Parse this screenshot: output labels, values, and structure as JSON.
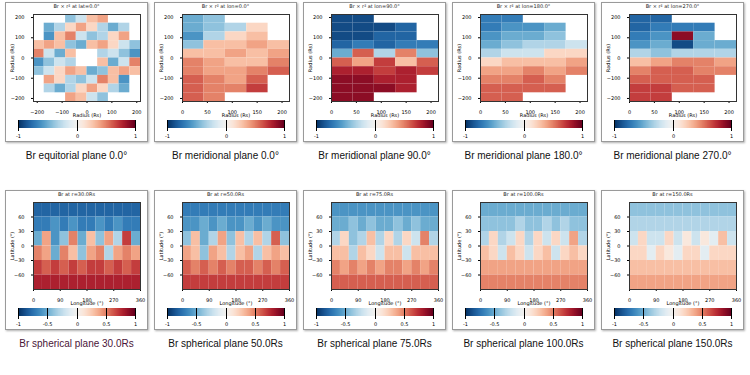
{
  "chart_data": [
    {
      "type": "heatmap",
      "caption": "Br equitorial plane 0.0°",
      "title": "Br × r² at lat=0.0°",
      "xlabel": "Radius (Rs)",
      "ylabel": "Radius (Rs)",
      "xlim": [
        -215,
        215
      ],
      "ylim": [
        -215,
        215
      ],
      "xticks": [
        -200,
        -100,
        0,
        100,
        200
      ],
      "yticks": [
        -200,
        -100,
        0,
        100,
        200
      ],
      "colorbar": {
        "lim": [
          -1,
          1
        ],
        "ticks": [
          -1,
          0,
          1
        ]
      },
      "cells": [
        [
          null,
          null,
          null,
          -0.4,
          -0.2,
          0.3,
          0.4,
          null,
          null,
          null
        ],
        [
          null,
          -0.5,
          -0.3,
          0.2,
          0.4,
          0.2,
          -0.3,
          -0.5,
          -0.3,
          null
        ],
        [
          null,
          -0.6,
          0.3,
          0.5,
          -0.2,
          -0.4,
          -0.3,
          0.2,
          0.4,
          null
        ],
        [
          0.3,
          0.4,
          0.3,
          -0.4,
          -0.5,
          0.3,
          0.4,
          0.2,
          -0.2,
          -0.4
        ],
        [
          0.5,
          -0.2,
          -0.5,
          0.3,
          null,
          null,
          -0.3,
          -0.2,
          -0.4,
          -0.6
        ],
        [
          -0.6,
          -0.4,
          -0.2,
          -0.3,
          null,
          null,
          0.3,
          -0.5,
          -0.2,
          0.5
        ],
        [
          -0.4,
          -0.2,
          0.2,
          0.4,
          0.3,
          -0.5,
          -0.4,
          0.3,
          0.4,
          0.3
        ],
        [
          null,
          0.4,
          0.2,
          -0.3,
          -0.4,
          -0.2,
          0.5,
          0.3,
          -0.6,
          null
        ],
        [
          null,
          -0.3,
          -0.5,
          -0.3,
          0.2,
          0.4,
          0.2,
          -0.3,
          -0.5,
          null
        ],
        [
          null,
          null,
          null,
          0.4,
          0.3,
          -0.2,
          -0.4,
          null,
          null,
          null
        ]
      ]
    },
    {
      "type": "heatmap",
      "caption": "Br meridional plane 0.0°",
      "title": "Br × r² at lon=0.0°",
      "xlabel": "Radius (Rs)",
      "ylabel": "Radius (Rs)",
      "xlim": [
        0,
        215
      ],
      "ylim": [
        -215,
        215
      ],
      "xticks": [
        0,
        50,
        100,
        150,
        200
      ],
      "yticks": [
        -200,
        -100,
        0,
        100,
        200
      ],
      "colorbar": {
        "lim": [
          -1,
          1
        ],
        "ticks": [
          -1,
          0,
          1
        ]
      },
      "cells": [
        [
          -0.5,
          -0.4,
          null,
          null,
          null
        ],
        [
          -0.5,
          -0.4,
          -0.3,
          0.2,
          null
        ],
        [
          -0.6,
          -0.3,
          0.2,
          0.3,
          null
        ],
        [
          -0.4,
          0.3,
          0.3,
          0.4,
          0.3
        ],
        [
          0.3,
          0.3,
          0.4,
          0.3,
          0.4
        ],
        [
          0.5,
          0.4,
          0.3,
          0.3,
          0.5
        ],
        [
          0.5,
          0.4,
          0.4,
          0.5,
          0.6
        ],
        [
          0.6,
          0.5,
          0.4,
          0.6,
          null
        ],
        [
          0.6,
          0.5,
          0.5,
          0.7,
          null
        ],
        [
          0.6,
          0.5,
          null,
          null,
          null
        ]
      ]
    },
    {
      "type": "heatmap",
      "caption": "Br meridional plane 90.0°",
      "title": "Br × r² at lon=90.0°",
      "xlabel": "Radius (Rs)",
      "ylabel": "Radius (Rs)",
      "xlim": [
        0,
        215
      ],
      "ylim": [
        -215,
        215
      ],
      "xticks": [
        0,
        50,
        100,
        150,
        200
      ],
      "yticks": [
        -200,
        -100,
        0,
        100,
        200
      ],
      "colorbar": {
        "lim": [
          -1,
          1
        ],
        "ticks": [
          -1,
          0,
          1
        ]
      },
      "cells": [
        [
          -0.9,
          -0.9,
          null,
          null,
          null
        ],
        [
          -0.9,
          -0.9,
          -0.9,
          -0.8,
          null
        ],
        [
          -0.9,
          -0.9,
          -0.8,
          -0.8,
          null
        ],
        [
          -0.8,
          -0.7,
          -0.8,
          -0.7,
          -0.7
        ],
        [
          -0.5,
          0.6,
          -0.3,
          0.5,
          -0.4
        ],
        [
          0.6,
          0.4,
          0.7,
          0.3,
          0.6
        ],
        [
          0.8,
          0.8,
          0.7,
          0.8,
          0.7
        ],
        [
          0.9,
          0.9,
          0.8,
          0.8,
          null
        ],
        [
          0.9,
          0.9,
          0.9,
          0.8,
          null
        ],
        [
          0.9,
          0.9,
          null,
          null,
          null
        ]
      ]
    },
    {
      "type": "heatmap",
      "caption": "Br meridional plane 180.0°",
      "title": "Br × r² at lon=180.0°",
      "xlabel": "Radius (Rs)",
      "ylabel": "Radius (Rs)",
      "xlim": [
        0,
        215
      ],
      "ylim": [
        -215,
        215
      ],
      "xticks": [
        0,
        50,
        100,
        150,
        200
      ],
      "yticks": [
        -200,
        -100,
        0,
        100,
        200
      ],
      "colorbar": {
        "lim": [
          -1,
          1
        ],
        "ticks": [
          -1,
          0,
          1
        ]
      },
      "cells": [
        [
          -0.7,
          -0.7,
          null,
          null,
          null
        ],
        [
          -0.7,
          -0.6,
          -0.6,
          -0.5,
          null
        ],
        [
          -0.6,
          -0.5,
          -0.5,
          -0.4,
          null
        ],
        [
          -0.5,
          -0.4,
          -0.3,
          -0.3,
          -0.2
        ],
        [
          -0.3,
          -0.2,
          -0.2,
          0.2,
          0.2
        ],
        [
          0.2,
          0.3,
          0.3,
          0.3,
          0.4
        ],
        [
          0.4,
          0.4,
          0.5,
          0.4,
          0.5
        ],
        [
          0.5,
          0.5,
          0.6,
          0.5,
          null
        ],
        [
          0.6,
          0.6,
          0.6,
          0.6,
          null
        ],
        [
          0.6,
          0.6,
          null,
          null,
          null
        ]
      ]
    },
    {
      "type": "heatmap",
      "caption": "Br meridional plane 270.0°",
      "title": "Br × r² at lon=270.0°",
      "xlabel": "Radius (Rs)",
      "ylabel": "Radius (Rs)",
      "xlim": [
        0,
        215
      ],
      "ylim": [
        -215,
        215
      ],
      "xticks": [
        0,
        50,
        100,
        150,
        200
      ],
      "yticks": [
        -200,
        -100,
        0,
        100,
        200
      ],
      "colorbar": {
        "lim": [
          -1,
          1
        ],
        "ticks": [
          -1,
          0,
          1
        ]
      },
      "cells": [
        [
          -0.8,
          -0.8,
          null,
          null,
          null
        ],
        [
          -0.8,
          -0.7,
          -0.7,
          -0.7,
          null
        ],
        [
          -0.7,
          -0.6,
          0.9,
          -0.5,
          null
        ],
        [
          -0.6,
          -0.5,
          -0.9,
          -0.5,
          -0.5
        ],
        [
          -0.3,
          -0.4,
          -0.3,
          -0.3,
          -0.3
        ],
        [
          0.3,
          0.4,
          0.5,
          0.5,
          0.4
        ],
        [
          0.5,
          0.6,
          0.6,
          0.5,
          0.5
        ],
        [
          0.6,
          0.6,
          0.6,
          0.6,
          null
        ],
        [
          0.7,
          0.7,
          0.6,
          0.6,
          null
        ],
        [
          0.7,
          0.7,
          null,
          null,
          null
        ]
      ]
    },
    {
      "type": "heatmap",
      "caption": "Br spherical plane 30.0Rs",
      "title": "Br at r=30.0Rs",
      "xlabel": "Longitude (°)",
      "ylabel": "Latitude (°)",
      "xlim": [
        0,
        360
      ],
      "ylim": [
        -90,
        90
      ],
      "xticks": [
        0,
        90,
        180,
        270,
        360
      ],
      "yticks": [
        -60,
        -30,
        0,
        30,
        60
      ],
      "colorbar": {
        "lim": [
          -1,
          1
        ],
        "ticks": [
          -1,
          -0.5,
          0,
          0.5,
          1
        ]
      },
      "cells": [
        [
          -0.8,
          -0.8,
          -0.8,
          -0.8,
          -0.8,
          -0.8,
          -0.8,
          -0.8,
          -0.8,
          -0.8,
          -0.8,
          -0.8
        ],
        [
          -0.7,
          -0.7,
          -0.6,
          -0.7,
          -0.6,
          -0.7,
          -0.7,
          -0.6,
          -0.7,
          -0.6,
          -0.7,
          -0.7
        ],
        [
          -0.5,
          0.4,
          -0.6,
          -0.4,
          0.5,
          -0.5,
          0.3,
          -0.4,
          0.4,
          -0.3,
          0.7,
          -0.5
        ],
        [
          0.5,
          0.4,
          -0.5,
          0.5,
          0.3,
          -0.4,
          0.4,
          0.5,
          -0.3,
          0.4,
          0.5,
          0.4
        ],
        [
          0.7,
          0.6,
          0.7,
          0.6,
          0.7,
          0.6,
          0.7,
          0.7,
          0.6,
          0.7,
          0.6,
          0.7
        ],
        [
          0.8,
          0.8,
          0.8,
          0.8,
          0.8,
          0.8,
          0.8,
          0.8,
          0.8,
          0.8,
          0.8,
          0.8
        ]
      ]
    },
    {
      "type": "heatmap",
      "caption": "Br spherical plane 50.0Rs",
      "title": "Br at r=50.0Rs",
      "xlabel": "Longitude (°)",
      "ylabel": "Latitude (°)",
      "xlim": [
        0,
        360
      ],
      "ylim": [
        -90,
        90
      ],
      "xticks": [
        0,
        90,
        180,
        270,
        360
      ],
      "yticks": [
        -60,
        -30,
        0,
        30,
        60
      ],
      "colorbar": {
        "lim": [
          -1,
          1
        ],
        "ticks": [
          -1,
          -0.5,
          0,
          0.5,
          1
        ]
      },
      "cells": [
        [
          -0.7,
          -0.7,
          -0.7,
          -0.7,
          -0.7,
          -0.7,
          -0.7,
          -0.7,
          -0.7,
          -0.7,
          -0.7,
          -0.7
        ],
        [
          -0.6,
          -0.6,
          -0.5,
          -0.6,
          -0.5,
          -0.6,
          -0.6,
          -0.5,
          -0.6,
          -0.5,
          -0.6,
          -0.6
        ],
        [
          -0.4,
          0.3,
          -0.5,
          -0.3,
          0.4,
          -0.4,
          0.3,
          -0.3,
          0.3,
          -0.3,
          0.6,
          -0.4
        ],
        [
          0.4,
          0.3,
          -0.4,
          0.4,
          0.3,
          -0.3,
          0.3,
          0.4,
          -0.3,
          0.3,
          0.4,
          0.3
        ],
        [
          0.6,
          0.5,
          0.6,
          0.5,
          0.6,
          0.5,
          0.6,
          0.6,
          0.5,
          0.6,
          0.5,
          0.6
        ],
        [
          0.7,
          0.7,
          0.7,
          0.7,
          0.7,
          0.7,
          0.7,
          0.7,
          0.7,
          0.7,
          0.7,
          0.7
        ]
      ]
    },
    {
      "type": "heatmap",
      "caption": "Br spherical plane 75.0Rs",
      "title": "Br at r=75.0Rs",
      "xlabel": "Longitude (°)",
      "ylabel": "Latitude (°)",
      "xlim": [
        0,
        360
      ],
      "ylim": [
        -90,
        90
      ],
      "xticks": [
        0,
        90,
        180,
        270,
        360
      ],
      "yticks": [
        -60,
        -30,
        0,
        30,
        60
      ],
      "colorbar": {
        "lim": [
          -1,
          1
        ],
        "ticks": [
          -1,
          -0.5,
          0,
          0.5,
          1
        ]
      },
      "cells": [
        [
          -0.6,
          -0.6,
          -0.6,
          -0.6,
          -0.6,
          -0.6,
          -0.6,
          -0.6,
          -0.6,
          -0.6,
          -0.6,
          -0.6
        ],
        [
          -0.5,
          -0.5,
          -0.4,
          -0.5,
          -0.4,
          -0.5,
          -0.5,
          -0.4,
          -0.5,
          -0.4,
          -0.5,
          -0.5
        ],
        [
          -0.3,
          0.2,
          -0.4,
          -0.3,
          0.3,
          -0.3,
          0.2,
          -0.3,
          0.2,
          -0.2,
          0.5,
          -0.3
        ],
        [
          0.3,
          0.3,
          -0.3,
          0.3,
          0.2,
          -0.2,
          0.3,
          0.3,
          -0.2,
          0.3,
          0.3,
          0.3
        ],
        [
          0.5,
          0.4,
          0.5,
          0.4,
          0.5,
          0.4,
          0.5,
          0.5,
          0.4,
          0.5,
          0.4,
          0.5
        ],
        [
          0.6,
          0.6,
          0.6,
          0.6,
          0.6,
          0.6,
          0.6,
          0.6,
          0.6,
          0.6,
          0.6,
          0.6
        ]
      ]
    },
    {
      "type": "heatmap",
      "caption": "Br spherical plane 100.0Rs",
      "title": "Br at r=100.0Rs",
      "xlabel": "Longitude (°)",
      "ylabel": "Latitude (°)",
      "xlim": [
        0,
        360
      ],
      "ylim": [
        -90,
        90
      ],
      "xticks": [
        0,
        90,
        180,
        270,
        360
      ],
      "yticks": [
        -60,
        -30,
        0,
        30,
        60
      ],
      "colorbar": {
        "lim": [
          -1,
          1
        ],
        "ticks": [
          -1,
          -0.5,
          0,
          0.5,
          1
        ]
      },
      "cells": [
        [
          -0.5,
          -0.5,
          -0.5,
          -0.5,
          -0.5,
          -0.5,
          -0.5,
          -0.5,
          -0.5,
          -0.5,
          -0.5,
          -0.5
        ],
        [
          -0.4,
          -0.4,
          -0.4,
          -0.4,
          -0.3,
          -0.4,
          -0.4,
          -0.3,
          -0.4,
          -0.3,
          -0.4,
          -0.4
        ],
        [
          -0.3,
          0.2,
          -0.3,
          -0.2,
          0.2,
          -0.3,
          0.2,
          -0.2,
          0.2,
          -0.2,
          0.4,
          -0.3
        ],
        [
          0.3,
          0.2,
          -0.2,
          0.3,
          0.2,
          -0.2,
          0.2,
          0.3,
          -0.2,
          0.2,
          0.3,
          0.2
        ],
        [
          0.4,
          0.4,
          0.4,
          0.4,
          0.4,
          0.4,
          0.4,
          0.4,
          0.4,
          0.4,
          0.4,
          0.4
        ],
        [
          0.5,
          0.5,
          0.5,
          0.5,
          0.5,
          0.5,
          0.5,
          0.5,
          0.5,
          0.5,
          0.5,
          0.5
        ]
      ]
    },
    {
      "type": "heatmap",
      "caption": "Br spherical plane 150.0Rs",
      "title": "Br at r=150.0Rs",
      "xlabel": "Longitude (°)",
      "ylabel": "Latitude (°)",
      "xlim": [
        0,
        360
      ],
      "ylim": [
        -90,
        90
      ],
      "xticks": [
        0,
        90,
        180,
        270,
        360
      ],
      "yticks": [
        -60,
        -30,
        0,
        30,
        60
      ],
      "colorbar": {
        "lim": [
          -1,
          1
        ],
        "ticks": [
          -1,
          -0.5,
          0,
          0.5,
          1
        ]
      },
      "cells": [
        [
          -0.4,
          -0.4,
          -0.4,
          -0.4,
          -0.4,
          -0.4,
          -0.4,
          -0.4,
          -0.4,
          -0.4,
          -0.4,
          -0.4
        ],
        [
          -0.3,
          -0.3,
          -0.3,
          -0.3,
          -0.3,
          -0.3,
          -0.3,
          -0.3,
          -0.3,
          -0.3,
          -0.3,
          -0.3
        ],
        [
          -0.2,
          0.2,
          -0.2,
          -0.2,
          0.2,
          -0.2,
          0.1,
          -0.2,
          0.1,
          -0.1,
          0.3,
          -0.2
        ],
        [
          0.2,
          0.2,
          -0.1,
          0.2,
          0.1,
          -0.1,
          0.2,
          0.2,
          -0.1,
          0.2,
          0.2,
          0.2
        ],
        [
          0.3,
          0.3,
          0.3,
          0.3,
          0.3,
          0.3,
          0.3,
          0.3,
          0.3,
          0.3,
          0.3,
          0.3
        ],
        [
          0.4,
          0.4,
          0.4,
          0.4,
          0.4,
          0.4,
          0.4,
          0.4,
          0.4,
          0.4,
          0.4,
          0.4
        ]
      ]
    }
  ]
}
